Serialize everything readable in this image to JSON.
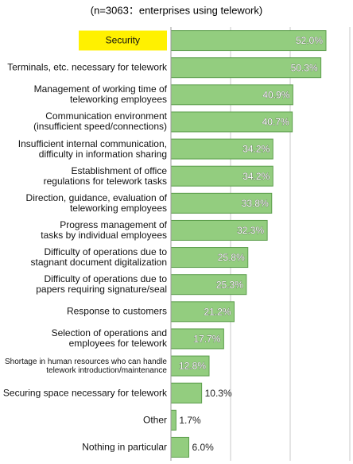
{
  "chart_data": {
    "type": "bar",
    "orientation": "horizontal",
    "subtitle": "(n=3063：enterprises using telework)",
    "categories": [
      "Security",
      "Terminals, etc. necessary for telework",
      "Management of working time of\nteleworking employees",
      "Communication environment\n(insufficient speed/connections)",
      "Insufficient internal communication,\ndifficulty in information sharing",
      "Establishment of office\nregulations for telework tasks",
      "Direction, guidance, evaluation of\nteleworking employees",
      "Progress management of\ntasks by individual employees",
      "Difficulty of operations due to\nstagnant document digitalization",
      "Difficulty of operations due to\npapers requiring signature/seal",
      "Response to customers",
      "Selection of operations and\nemployees for telework",
      "Shortage in human resources who can handle\ntelework introduction/maintenance",
      "Securing space necessary for telework",
      "Other",
      "Nothing in particular"
    ],
    "values": [
      52.0,
      50.3,
      40.9,
      40.7,
      34.2,
      34.2,
      33.8,
      32.3,
      25.8,
      25.3,
      21.2,
      17.7,
      12.8,
      10.3,
      1.7,
      6.0
    ],
    "value_labels": [
      "52.0%",
      "50.3%",
      "40.9%",
      "40.7%",
      "34.2%",
      "34.2%",
      "33.8%",
      "32.3%",
      "25.8%",
      "25.3%",
      "21.2%",
      "17.7%",
      "12.8%",
      "10.3%",
      "1.7%",
      "6.0%"
    ],
    "color": "#93cd7f",
    "border_color": "#5c9e4c",
    "highlighted": [
      0
    ],
    "highlight_color": "#fff100",
    "xlim": [
      0,
      60
    ],
    "xticks": [
      0,
      20,
      40,
      60
    ],
    "grid": true
  }
}
